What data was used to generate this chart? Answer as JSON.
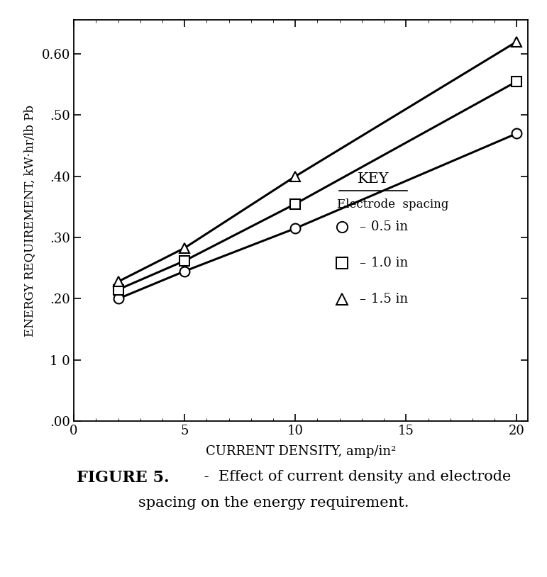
{
  "x_data": [
    2,
    5,
    10,
    20
  ],
  "series": [
    {
      "label": "0.5 in",
      "marker": "o",
      "y": [
        0.2,
        0.245,
        0.315,
        0.47
      ]
    },
    {
      "label": "1.0 in",
      "marker": "s",
      "y": [
        0.215,
        0.262,
        0.355,
        0.555
      ]
    },
    {
      "label": "1.5 in",
      "marker": "^",
      "y": [
        0.228,
        0.283,
        0.4,
        0.62
      ]
    }
  ],
  "xlim": [
    0,
    20.5
  ],
  "ylim": [
    0.0,
    0.655
  ],
  "xticks": [
    0,
    5,
    10,
    15,
    20
  ],
  "yticks": [
    0.0,
    0.1,
    0.2,
    0.3,
    0.4,
    0.5,
    0.6
  ],
  "ytick_labels": [
    ".00",
    "1 0",
    ".20",
    ".30",
    ".40",
    ".50",
    "0.60"
  ],
  "xlabel": "CURRENT DENSITY, amp/in²",
  "ylabel": "ENERGY REQUIREMENT, kW·hr/lb Pb",
  "key_title": "KEY",
  "key_subtitle": "Electrode spacing",
  "line_color": "#000000",
  "line_width": 2.2,
  "marker_size": 10,
  "background_color": "#ffffff",
  "caption_line1": "FIGURE 5.",
  "caption_dash": " -  Effect of current density and electrode",
  "caption_line2": "spacing on the energy requirement."
}
